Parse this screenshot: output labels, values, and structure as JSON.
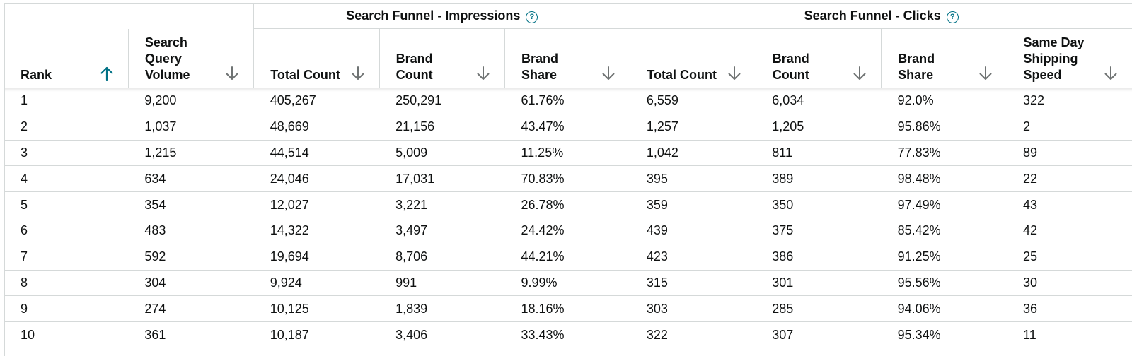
{
  "groups": {
    "impressions": {
      "label": "Search Funnel - Impressions",
      "help": "?"
    },
    "clicks": {
      "label": "Search Funnel - Clicks",
      "help": "?"
    }
  },
  "columns": {
    "rank": "Rank",
    "search_query_volume": "Search Query Volume",
    "imp_total_count": "Total Count",
    "imp_brand_count": "Brand Count",
    "imp_brand_share": "Brand Share",
    "clk_total_count": "Total Count",
    "clk_brand_count": "Brand Count",
    "clk_brand_share": "Brand Share",
    "same_day_shipping_speed": "Same Day Shipping Speed"
  },
  "sort": {
    "rank": "ascending"
  },
  "colors": {
    "accent": "#007185",
    "sort_inactive": "#6f7373",
    "border": "#d5d9d9"
  },
  "rows": [
    [
      "1",
      "9,200",
      "405,267",
      "250,291",
      "61.76%",
      "6,559",
      "6,034",
      "92.0%",
      "322"
    ],
    [
      "2",
      "1,037",
      "48,669",
      "21,156",
      "43.47%",
      "1,257",
      "1,205",
      "95.86%",
      "2"
    ],
    [
      "3",
      "1,215",
      "44,514",
      "5,009",
      "11.25%",
      "1,042",
      "811",
      "77.83%",
      "89"
    ],
    [
      "4",
      "634",
      "24,046",
      "17,031",
      "70.83%",
      "395",
      "389",
      "98.48%",
      "22"
    ],
    [
      "5",
      "354",
      "12,027",
      "3,221",
      "26.78%",
      "359",
      "350",
      "97.49%",
      "43"
    ],
    [
      "6",
      "483",
      "14,322",
      "3,497",
      "24.42%",
      "439",
      "375",
      "85.42%",
      "42"
    ],
    [
      "7",
      "592",
      "19,694",
      "8,706",
      "44.21%",
      "423",
      "386",
      "91.25%",
      "25"
    ],
    [
      "8",
      "304",
      "9,924",
      "991",
      "9.99%",
      "315",
      "301",
      "95.56%",
      "30"
    ],
    [
      "9",
      "274",
      "10,125",
      "1,839",
      "18.16%",
      "303",
      "285",
      "94.06%",
      "36"
    ],
    [
      "10",
      "361",
      "10,187",
      "3,406",
      "33.43%",
      "322",
      "307",
      "95.34%",
      "11"
    ]
  ]
}
